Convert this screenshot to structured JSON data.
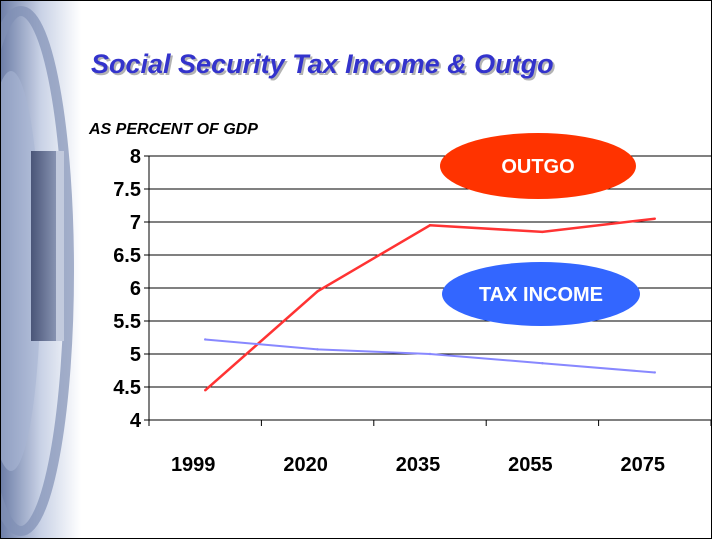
{
  "title": "Social Security Tax Income & Outgo",
  "colors": {
    "title": "#3333cc",
    "outgo_line": "#ff3333",
    "outgo_badge": "#ff3300",
    "tax_line": "#8888ff",
    "tax_badge": "#3366ff",
    "badge_text": "#ffffff"
  },
  "chart_data": {
    "type": "line",
    "ylabel": "AS PERCENT OF GDP",
    "xlabel": "",
    "categories": [
      "1999",
      "2020",
      "2035",
      "2055",
      "2075"
    ],
    "ylim": [
      4,
      8
    ],
    "yticks": [
      "8",
      "7.5",
      "7",
      "6.5",
      "6",
      "5.5",
      "5",
      "4.5",
      "4"
    ],
    "grid": "horizontal",
    "legend": "inline-labels",
    "series": [
      {
        "name": "OUTGO",
        "values": [
          4.45,
          5.95,
          6.95,
          6.85,
          7.05
        ]
      },
      {
        "name": "TAX INCOME",
        "values": [
          5.22,
          5.07,
          5.0,
          4.86,
          4.72
        ]
      }
    ]
  }
}
